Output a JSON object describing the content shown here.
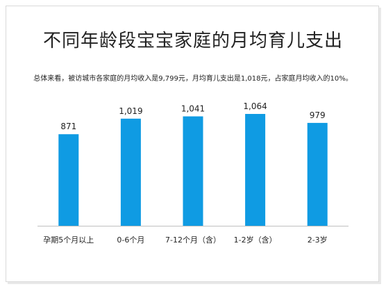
{
  "title": "不同年龄段宝宝家庭的月均育儿支出",
  "subtitle": "总体来看，被访城市各家庭的月均收入是9,799元，月均育儿支出是1,018元，占家庭月均收入的10%。",
  "colors": {
    "bar": "#0f9be3",
    "axis": "#bfbfbf",
    "text": "#222222"
  },
  "chart_data": {
    "type": "bar",
    "categories": [
      "孕期5个月以上",
      "0-6个月",
      "7-12个月（含）",
      "1-2岁（含）",
      "2-3岁"
    ],
    "values": [
      871,
      1019,
      1041,
      1064,
      979
    ],
    "value_labels": [
      "871",
      "1,019",
      "1,041",
      "1,064",
      "979"
    ],
    "title": "不同年龄段宝宝家庭的月均育儿支出",
    "xlabel": "",
    "ylabel": "",
    "ylim": [
      0,
      1064
    ],
    "grid": false,
    "legend": "none"
  }
}
